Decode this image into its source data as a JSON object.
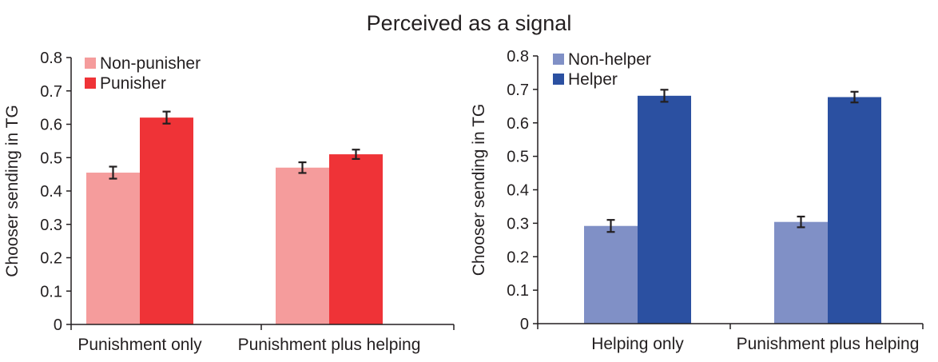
{
  "suptitle": "Perceived as a signal",
  "chart_data": [
    {
      "type": "bar",
      "title": "",
      "xlabel": "",
      "ylabel": "Chooser sending in TG",
      "ylim": [
        0,
        0.8
      ],
      "yticks": [
        "0",
        "0.1",
        "0.2",
        "0.3",
        "0.4",
        "0.5",
        "0.6",
        "0.7",
        "0.8"
      ],
      "categories": [
        "Punishment only",
        "Punishment plus helping"
      ],
      "series": [
        {
          "name": "Non-punisher",
          "color": "#f59c9c",
          "values": [
            0.455,
            0.47
          ],
          "errors": [
            0.018,
            0.016
          ]
        },
        {
          "name": "Punisher",
          "color": "#ef3337",
          "values": [
            0.62,
            0.51
          ],
          "errors": [
            0.018,
            0.014
          ]
        }
      ],
      "legend": "top-left",
      "grid": false,
      "error_bars": true
    },
    {
      "type": "bar",
      "title": "",
      "xlabel": "",
      "ylabel": "Chooser sending in TG",
      "ylim": [
        0,
        0.8
      ],
      "yticks": [
        "0",
        "0.1",
        "0.2",
        "0.3",
        "0.4",
        "0.5",
        "0.6",
        "0.7",
        "0.8"
      ],
      "categories": [
        "Helping only",
        "Punishment plus helping"
      ],
      "series": [
        {
          "name": "Non-helper",
          "color": "#8090c6",
          "values": [
            0.292,
            0.304
          ],
          "errors": [
            0.018,
            0.016
          ]
        },
        {
          "name": "Helper",
          "color": "#2b50a1",
          "values": [
            0.681,
            0.677
          ],
          "errors": [
            0.018,
            0.016
          ]
        }
      ],
      "legend": "top-left",
      "grid": false,
      "error_bars": true
    }
  ]
}
